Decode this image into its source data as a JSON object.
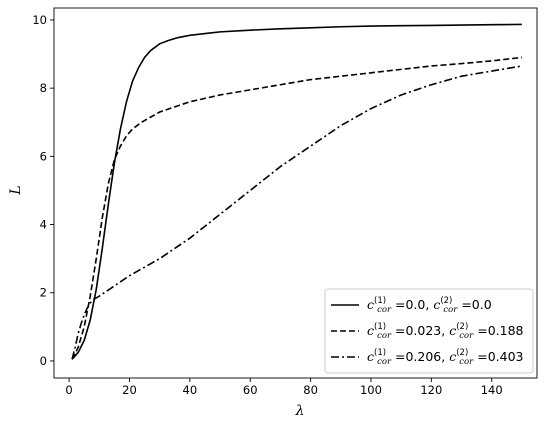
{
  "chart_data": {
    "type": "line",
    "title": "",
    "xlabel": "λ",
    "ylabel": "L",
    "xlim": [
      -5,
      155
    ],
    "ylim": [
      -0.5,
      10.35
    ],
    "xticks": [
      0,
      20,
      40,
      60,
      80,
      100,
      120,
      140
    ],
    "yticks": [
      0,
      2,
      4,
      6,
      8,
      10
    ],
    "grid": false,
    "legend_position": "bottom-right",
    "series": [
      {
        "style": "solid",
        "legend": {
          "c1_value": "=0.0",
          "sep": ", ",
          "c2_value": "=0.0"
        },
        "x": [
          1,
          3,
          5,
          7,
          9,
          11,
          13,
          15,
          17,
          19,
          21,
          23,
          25,
          27,
          30,
          33,
          36,
          40,
          45,
          50,
          60,
          70,
          80,
          90,
          100,
          110,
          120,
          130,
          140,
          150
        ],
        "y": [
          0.05,
          0.25,
          0.6,
          1.2,
          2.1,
          3.3,
          4.6,
          5.8,
          6.8,
          7.6,
          8.2,
          8.6,
          8.9,
          9.1,
          9.3,
          9.4,
          9.48,
          9.55,
          9.6,
          9.65,
          9.7,
          9.74,
          9.77,
          9.8,
          9.82,
          9.83,
          9.84,
          9.85,
          9.86,
          9.87
        ]
      },
      {
        "style": "dashed",
        "legend": {
          "c1_value": "=0.023",
          "sep": ", ",
          "c2_value": "=0.188"
        },
        "x": [
          1,
          3,
          5,
          7,
          9,
          11,
          13,
          15,
          17,
          19,
          21,
          24,
          27,
          30,
          35,
          40,
          50,
          60,
          70,
          80,
          90,
          100,
          110,
          120,
          130,
          140,
          150
        ],
        "y": [
          0.05,
          0.4,
          1.0,
          1.9,
          3.0,
          4.2,
          5.2,
          5.9,
          6.3,
          6.6,
          6.8,
          7.0,
          7.15,
          7.3,
          7.45,
          7.6,
          7.8,
          7.95,
          8.1,
          8.25,
          8.35,
          8.45,
          8.55,
          8.65,
          8.72,
          8.8,
          8.9
        ]
      },
      {
        "style": "dashdot",
        "legend": {
          "c1_value": "=0.206",
          "sep": ", ",
          "c2_value": "=0.403"
        },
        "x": [
          1,
          2,
          3,
          4,
          5,
          6,
          7,
          8,
          10,
          15,
          20,
          30,
          40,
          50,
          60,
          70,
          80,
          90,
          100,
          110,
          120,
          130,
          140,
          150
        ],
        "y": [
          0.05,
          0.4,
          0.8,
          1.1,
          1.35,
          1.55,
          1.7,
          1.8,
          1.9,
          2.2,
          2.5,
          3.0,
          3.6,
          4.3,
          5.0,
          5.7,
          6.3,
          6.9,
          7.4,
          7.8,
          8.1,
          8.35,
          8.5,
          8.65
        ]
      }
    ]
  }
}
